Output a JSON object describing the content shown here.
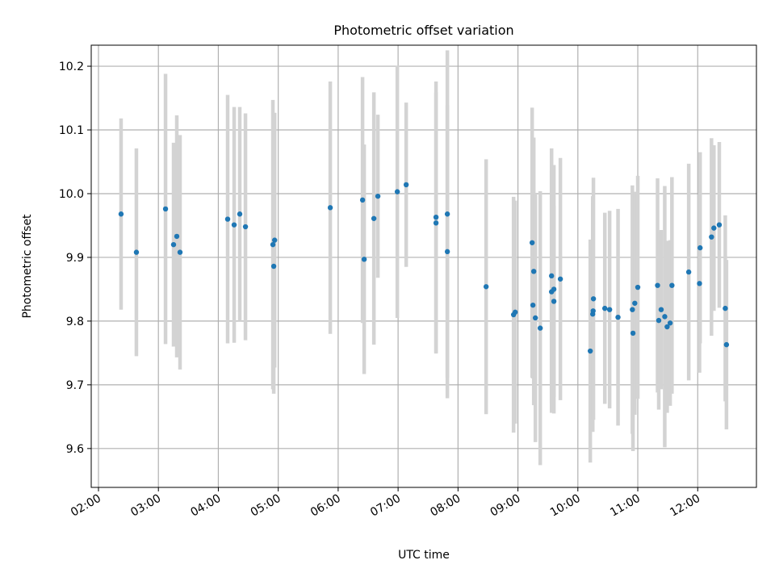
{
  "chart_data": {
    "type": "scatter",
    "title": "Photometric offset variation",
    "xlabel": "UTC time",
    "ylabel": "Photometric offset",
    "x_unit": "hours (UTC)",
    "xlim": [
      1.879,
      12.98
    ],
    "ylim": [
      9.539,
      10.233
    ],
    "grid": true,
    "x_ticks": [
      {
        "value": 2,
        "label": "02:00"
      },
      {
        "value": 3,
        "label": "03:00"
      },
      {
        "value": 4,
        "label": "04:00"
      },
      {
        "value": 5,
        "label": "05:00"
      },
      {
        "value": 6,
        "label": "06:00"
      },
      {
        "value": 7,
        "label": "07:00"
      },
      {
        "value": 8,
        "label": "08:00"
      },
      {
        "value": 9,
        "label": "09:00"
      },
      {
        "value": 10,
        "label": "10:00"
      },
      {
        "value": 11,
        "label": "11:00"
      },
      {
        "value": 12,
        "label": "12:00"
      }
    ],
    "y_ticks": [
      {
        "value": 9.6,
        "label": "9.6"
      },
      {
        "value": 9.7,
        "label": "9.7"
      },
      {
        "value": 9.8,
        "label": "9.8"
      },
      {
        "value": 9.9,
        "label": "9.9"
      },
      {
        "value": 10.0,
        "label": "10.0"
      },
      {
        "value": 10.1,
        "label": "10.1"
      },
      {
        "value": 10.2,
        "label": "10.2"
      }
    ],
    "colors": {
      "points": "#1f77b4",
      "errorbars": "#d3d3d3",
      "grid": "#b0b0b0"
    },
    "points": [
      [
        2.377,
        9.968,
        0.15
      ],
      [
        2.633,
        9.908,
        0.163
      ],
      [
        3.119,
        9.976,
        0.212
      ],
      [
        3.253,
        9.92,
        0.16
      ],
      [
        3.307,
        9.933,
        0.19
      ],
      [
        3.361,
        9.908,
        0.184
      ],
      [
        4.156,
        9.96,
        0.195
      ],
      [
        4.264,
        9.951,
        0.185
      ],
      [
        4.358,
        9.968,
        0.168
      ],
      [
        4.453,
        9.948,
        0.178
      ],
      [
        4.911,
        9.92,
        0.227
      ],
      [
        4.94,
        9.927,
        0.2
      ],
      [
        4.925,
        9.886,
        0.2
      ],
      [
        5.868,
        9.978,
        0.198
      ],
      [
        6.407,
        9.99,
        0.193
      ],
      [
        6.434,
        9.897,
        0.18
      ],
      [
        6.596,
        9.961,
        0.198
      ],
      [
        6.663,
        9.996,
        0.128
      ],
      [
        6.987,
        10.003,
        0.198
      ],
      [
        7.135,
        10.014,
        0.129
      ],
      [
        7.633,
        9.963,
        0.213
      ],
      [
        7.633,
        9.954,
        0.205
      ],
      [
        7.822,
        9.968,
        0.257
      ],
      [
        7.822,
        9.909,
        0.23
      ],
      [
        8.469,
        9.854,
        0.2
      ],
      [
        8.927,
        9.81,
        0.185
      ],
      [
        8.954,
        9.814,
        0.175
      ],
      [
        9.237,
        9.923,
        0.212
      ],
      [
        9.264,
        9.878,
        0.21
      ],
      [
        9.25,
        9.825,
        0.115
      ],
      [
        9.291,
        9.805,
        0.195
      ],
      [
        9.372,
        9.789,
        0.215
      ],
      [
        9.561,
        9.871,
        0.2
      ],
      [
        9.561,
        9.846,
        0.19
      ],
      [
        9.6,
        9.85,
        0.195
      ],
      [
        9.6,
        9.831,
        0.15
      ],
      [
        9.708,
        9.866,
        0.19
      ],
      [
        10.207,
        9.753,
        0.175
      ],
      [
        10.248,
        9.811,
        0.185
      ],
      [
        10.255,
        9.816,
        0.17
      ],
      [
        10.26,
        9.835,
        0.19
      ],
      [
        10.45,
        9.82,
        0.15
      ],
      [
        10.53,
        9.818,
        0.155
      ],
      [
        10.67,
        9.806,
        0.17
      ],
      [
        10.91,
        9.818,
        0.195
      ],
      [
        10.92,
        9.781,
        0.185
      ],
      [
        10.95,
        9.828,
        0.175
      ],
      [
        11.0,
        9.853,
        0.175
      ],
      [
        11.33,
        9.856,
        0.168
      ],
      [
        11.35,
        9.801,
        0.14
      ],
      [
        11.39,
        9.818,
        0.125
      ],
      [
        11.45,
        9.807,
        0.205
      ],
      [
        11.49,
        9.791,
        0.135
      ],
      [
        11.54,
        9.797,
        0.13
      ],
      [
        11.57,
        9.856,
        0.17
      ],
      [
        11.85,
        9.877,
        0.17
      ],
      [
        12.03,
        9.859,
        0.14
      ],
      [
        12.04,
        9.915,
        0.15
      ],
      [
        12.23,
        9.932,
        0.155
      ],
      [
        12.27,
        9.946,
        0.13
      ],
      [
        12.36,
        9.951,
        0.13
      ],
      [
        12.46,
        9.82,
        0.146
      ],
      [
        12.48,
        9.763,
        0.133
      ]
    ]
  }
}
